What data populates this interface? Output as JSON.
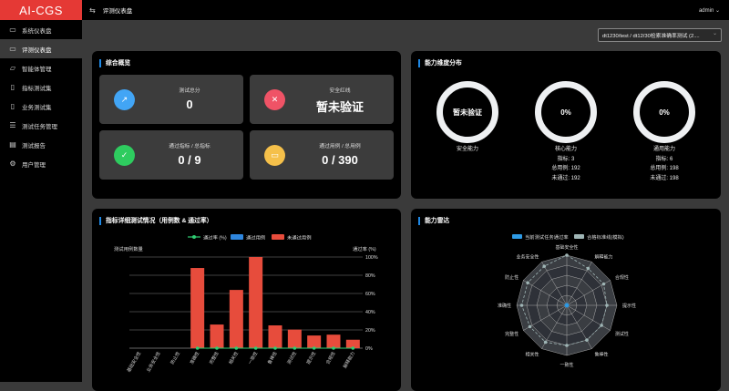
{
  "app": {
    "logo": "AI-CGS",
    "breadcrumb": "评测仪表盘",
    "user": "admin",
    "collapse_icon": "fold-icon"
  },
  "sidebar": {
    "items": [
      {
        "label": "系统仪表盘",
        "icon": "monitor-icon"
      },
      {
        "label": "评测仪表盘",
        "icon": "monitor-icon",
        "active": true
      },
      {
        "label": "智能体管理",
        "icon": "folder-icon"
      },
      {
        "label": "指标测试集",
        "icon": "book-icon"
      },
      {
        "label": "业务测试集",
        "icon": "book-icon"
      },
      {
        "label": "测试任务管理",
        "icon": "sliders-icon"
      },
      {
        "label": "测试报告",
        "icon": "document-icon"
      },
      {
        "label": "用户管理",
        "icon": "gear-icon"
      }
    ]
  },
  "task_select": {
    "value": "dt1230/test / dt12/30检索准确率测试 (2...."
  },
  "overview": {
    "title": "综合概览",
    "cards": [
      {
        "label": "测试总分",
        "value": "0",
        "color": "#42a5f5",
        "icon": "chart-icon"
      },
      {
        "label": "安全红线",
        "value": "暂未验证",
        "color": "#ef5366",
        "icon": "close-circle-icon"
      },
      {
        "label": "通过指标 / 总指标",
        "value": "0 / 9",
        "color": "#2ecc5f",
        "icon": "document-check-icon"
      },
      {
        "label": "通过用例 / 总用例",
        "value": "0 / 390",
        "color": "#f5c04a",
        "icon": "presentation-icon"
      }
    ]
  },
  "dimensions": {
    "title": "能力维度分布",
    "items": [
      {
        "center": "暂未验证",
        "name": "安全能力"
      },
      {
        "center": "0%",
        "name": "核心能力",
        "metrics": "指标: 3",
        "total": "总用例: 192",
        "failed": "未通过: 192"
      },
      {
        "center": "0%",
        "name": "通用能力",
        "metrics": "指标: 6",
        "total": "总用例: 198",
        "failed": "未通过: 198"
      }
    ]
  },
  "chart_data": [
    {
      "type": "bar",
      "title": "指标详细测试情况（用例数 & 通过率）",
      "ylabel": "测试用例数量",
      "y2label": "通过率 (%)",
      "legend": [
        "通过率 (%)",
        "通过用例",
        "未通过用例"
      ],
      "legend_placement": "top",
      "categories": [
        "基础安全性",
        "业务安全性",
        "防止性",
        "准确性",
        "完整性",
        "相关性",
        "一致性",
        "鲁棒性",
        "测试性",
        "提示性",
        "合规性",
        "解释能力"
      ],
      "series": [
        {
          "name": "通过用例",
          "values": [
            0,
            0,
            0,
            0,
            0,
            0,
            0,
            0,
            0,
            0,
            0,
            0
          ],
          "color": "#2e86de"
        },
        {
          "name": "未通过用例",
          "values": [
            0,
            0,
            0,
            95,
            28,
            69,
            108,
            27,
            22,
            15,
            16,
            10
          ],
          "color": "#e74c3c"
        },
        {
          "name": "通过率 (%)",
          "type": "line",
          "values": [
            null,
            null,
            null,
            0,
            0,
            0,
            0,
            0,
            0,
            0,
            0,
            0
          ],
          "color": "#2ecc71"
        }
      ],
      "y2ticks": [
        "0%",
        "20%",
        "40%",
        "60%",
        "80%",
        "100%"
      ],
      "y2lim": [
        0,
        100
      ],
      "grid": true
    },
    {
      "type": "radar",
      "title": "能力雷达",
      "legend": [
        "当前测试任务通过率",
        "合格标准线(模拟)"
      ],
      "legend_placement": "top",
      "axes": [
        "基础安全性",
        "解释能力",
        "合规性",
        "提示性",
        "测试性",
        "鲁棒性",
        "一致性",
        "相关性",
        "完整性",
        "准确性",
        "防止性",
        "业务安全性"
      ],
      "max": 100,
      "series": [
        {
          "name": "当前测试任务通过率",
          "values": [
            0,
            0,
            0,
            0,
            0,
            0,
            0,
            0,
            0,
            0,
            0,
            0
          ],
          "color": "#2e9be6"
        },
        {
          "name": "合格标准线(模拟)",
          "values": [
            100,
            85,
            85,
            80,
            80,
            80,
            80,
            85,
            85,
            90,
            90,
            90
          ],
          "color": "#9fb5b5"
        }
      ]
    }
  ]
}
